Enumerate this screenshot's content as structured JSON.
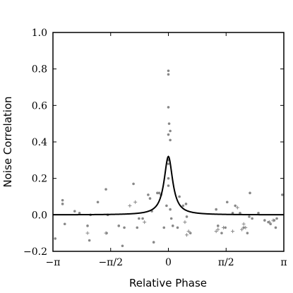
{
  "chart_data": {
    "type": "scatter",
    "title": "",
    "xlabel": "Relative Phase",
    "ylabel": "Noise Correlation",
    "xlim": [
      -3.14159,
      3.14159
    ],
    "ylim": [
      -0.2,
      1.0
    ],
    "x_ticks": [
      {
        "value": -3.14159,
        "label": "−π"
      },
      {
        "value": -1.5708,
        "label": "−π/2"
      },
      {
        "value": 0,
        "label": "0"
      },
      {
        "value": 1.5708,
        "label": "π/2"
      },
      {
        "value": 3.14159,
        "label": "π"
      }
    ],
    "y_ticks": [
      {
        "value": -0.2,
        "label": "−0.2"
      },
      {
        "value": 0.0,
        "label": "0.0"
      },
      {
        "value": 0.2,
        "label": "0.2"
      },
      {
        "value": 0.4,
        "label": "0.4"
      },
      {
        "value": 0.6,
        "label": "0.6"
      },
      {
        "value": 0.8,
        "label": "0.8"
      },
      {
        "value": 1.0,
        "label": "1.0"
      }
    ],
    "grid": false,
    "colors": {
      "points": "#888888",
      "curve": "#000000"
    },
    "series": [
      {
        "marker": "dot",
        "points": [
          [
            -3.08,
            -0.13
          ],
          [
            -2.88,
            0.08
          ],
          [
            -2.88,
            0.06
          ],
          [
            -2.82,
            -0.05
          ],
          [
            -2.55,
            0.02
          ],
          [
            -2.42,
            0.01
          ],
          [
            -2.2,
            -0.06
          ],
          [
            -2.15,
            -0.14
          ],
          [
            -2.12,
            0.0
          ],
          [
            -1.92,
            0.07
          ],
          [
            -1.7,
            0.14
          ],
          [
            -1.68,
            -0.1
          ],
          [
            -1.65,
            0.0
          ],
          [
            -1.35,
            -0.06
          ],
          [
            -1.25,
            -0.17
          ],
          [
            -1.2,
            -0.07
          ],
          [
            -0.95,
            0.17
          ],
          [
            -0.85,
            -0.07
          ],
          [
            -0.8,
            -0.02
          ],
          [
            -0.7,
            -0.02
          ],
          [
            -0.55,
            0.11
          ],
          [
            -0.5,
            0.09
          ],
          [
            -0.45,
            0.02
          ],
          [
            -0.4,
            -0.15
          ],
          [
            -0.3,
            0.12
          ],
          [
            -0.25,
            0.12
          ],
          [
            -0.2,
            0.11
          ],
          [
            -0.12,
            -0.07
          ],
          [
            -0.05,
            0.05
          ],
          [
            0.0,
            0.79
          ],
          [
            0.0,
            0.77
          ],
          [
            0.0,
            0.59
          ],
          [
            0.02,
            0.5
          ],
          [
            0.05,
            0.46
          ],
          [
            0.0,
            0.44
          ],
          [
            0.05,
            0.41
          ],
          [
            0.0,
            0.3
          ],
          [
            0.0,
            0.28
          ],
          [
            0.0,
            0.2
          ],
          [
            0.0,
            0.16
          ],
          [
            0.05,
            0.03
          ],
          [
            0.08,
            -0.02
          ],
          [
            0.12,
            -0.06
          ],
          [
            0.25,
            -0.07
          ],
          [
            0.3,
            0.1
          ],
          [
            0.4,
            0.05
          ],
          [
            0.48,
            0.06
          ],
          [
            0.5,
            -0.01
          ],
          [
            0.6,
            -0.1
          ],
          [
            1.3,
            0.03
          ],
          [
            1.35,
            -0.06
          ],
          [
            1.45,
            -0.1
          ],
          [
            1.55,
            -0.07
          ],
          [
            1.6,
            0.07
          ],
          [
            1.75,
            0.01
          ],
          [
            1.82,
            0.05
          ],
          [
            1.95,
            0.01
          ],
          [
            2.05,
            -0.07
          ],
          [
            2.15,
            -0.1
          ],
          [
            2.2,
            -0.01
          ],
          [
            2.22,
            0.12
          ],
          [
            2.28,
            -0.02
          ],
          [
            2.45,
            0.01
          ],
          [
            2.62,
            -0.03
          ],
          [
            2.72,
            -0.04
          ],
          [
            2.78,
            -0.05
          ],
          [
            2.88,
            -0.03
          ],
          [
            2.92,
            -0.07
          ],
          [
            2.95,
            -0.02
          ],
          [
            3.1,
            0.11
          ]
        ]
      },
      {
        "marker": "plus",
        "points": [
          [
            -2.2,
            -0.1
          ],
          [
            -1.7,
            -0.1
          ],
          [
            -1.05,
            0.05
          ],
          [
            -0.9,
            0.07
          ],
          [
            -0.65,
            -0.04
          ],
          [
            0.45,
            -0.04
          ],
          [
            0.5,
            -0.11
          ],
          [
            0.55,
            -0.09
          ],
          [
            1.3,
            -0.09
          ],
          [
            1.35,
            -0.08
          ],
          [
            1.5,
            -0.07
          ],
          [
            1.75,
            -0.09
          ],
          [
            1.88,
            0.04
          ],
          [
            2.0,
            -0.08
          ],
          [
            2.05,
            -0.05
          ],
          [
            2.1,
            -0.07
          ],
          [
            2.75,
            -0.04
          ],
          [
            2.85,
            -0.03
          ]
        ]
      },
      {
        "marker": "line",
        "curve": {
          "type": "lorentzian-cusp",
          "amplitude": 0.32,
          "width": 0.14
        }
      }
    ]
  }
}
